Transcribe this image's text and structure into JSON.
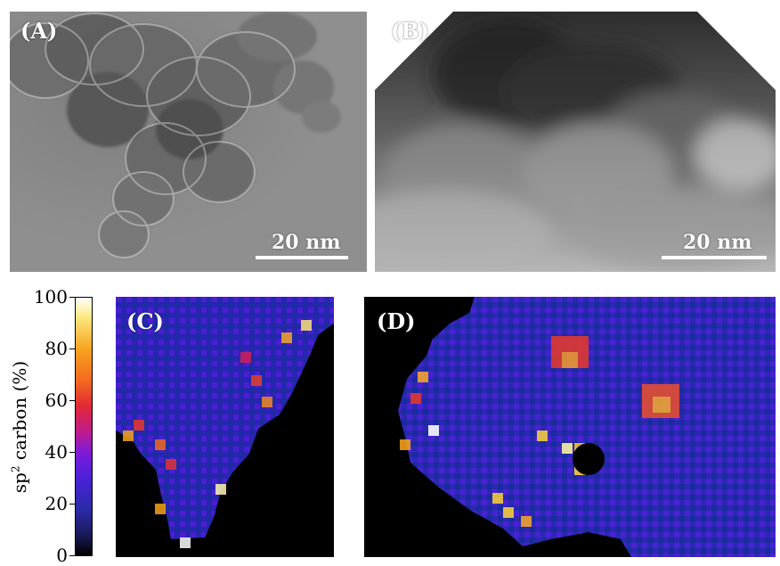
{
  "panels": {
    "a": {
      "label": "(A)"
    },
    "b": {
      "label": "(B)"
    },
    "c": {
      "label": "(C)"
    },
    "d": {
      "label": "(D)"
    }
  },
  "scalebars": {
    "a": "20 nm",
    "b": "20 nm"
  },
  "colorbar": {
    "label_prefix": "sp",
    "label_superscript": "2",
    "label_suffix": " carbon (%)",
    "ticks": [
      "100",
      "80",
      "60",
      "40",
      "20",
      "0"
    ]
  }
}
